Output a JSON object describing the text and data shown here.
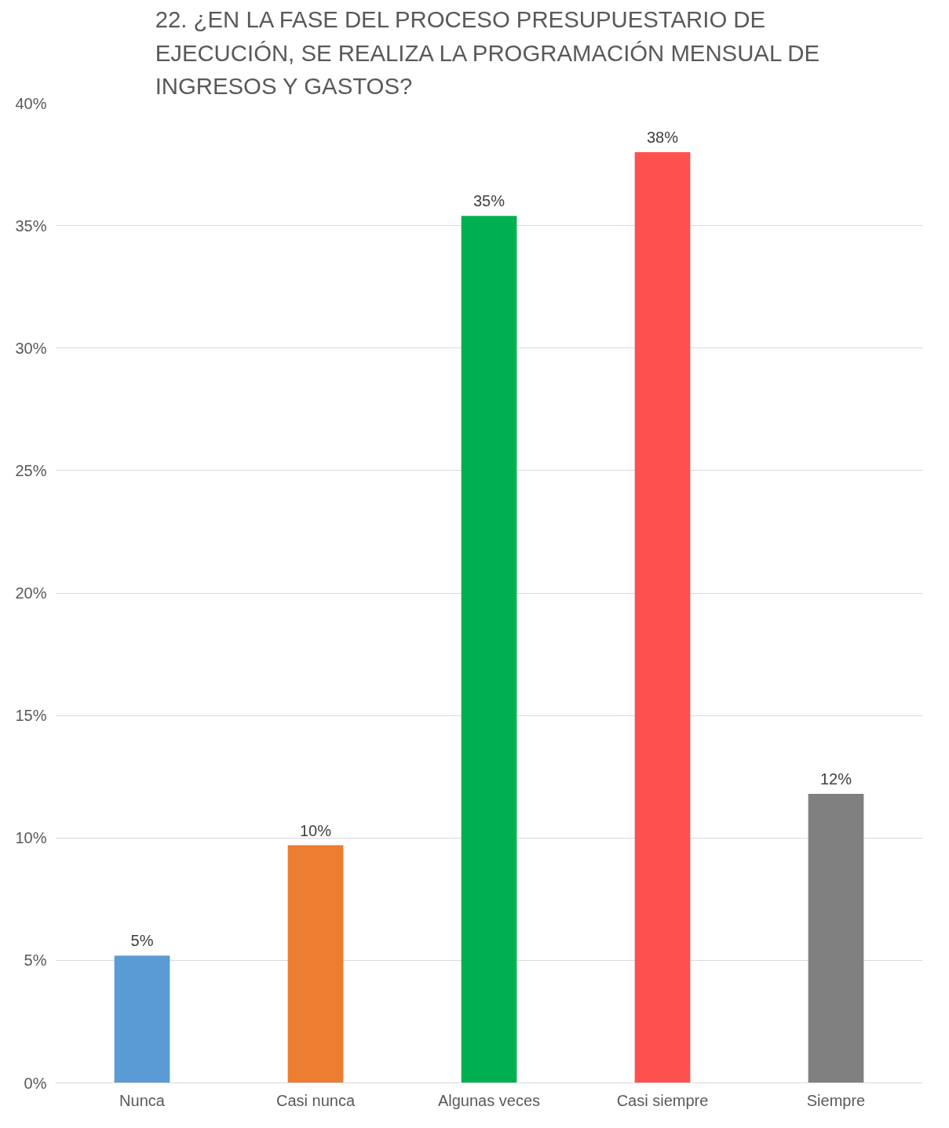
{
  "chart_data": {
    "type": "bar",
    "title": "22. ¿EN LA FASE DEL PROCESO PRESUPUESTARIO DE EJECUCIÓN, SE REALIZA LA PROGRAMACIÓN MENSUAL DE INGRESOS Y GASTOS?",
    "categories": [
      "Nunca",
      "Casi nunca",
      "Algunas veces",
      "Casi siempre",
      "Siempre"
    ],
    "values": [
      5.2,
      9.7,
      35.4,
      38.0,
      11.8
    ],
    "colors": [
      "#5b9bd5",
      "#ed7d31",
      "#00b050",
      "#ff5050",
      "#808080"
    ],
    "value_labels": [
      "5%",
      "10%",
      "35%",
      "38%",
      "12%"
    ],
    "ylim": [
      0,
      40
    ],
    "yticks": [
      {
        "value": 0,
        "label": "0%"
      },
      {
        "value": 5,
        "label": "5%"
      },
      {
        "value": 10,
        "label": "10%"
      },
      {
        "value": 15,
        "label": "15%"
      },
      {
        "value": 20,
        "label": "20%"
      },
      {
        "value": 25,
        "label": "25%"
      },
      {
        "value": 30,
        "label": "30%"
      },
      {
        "value": 35,
        "label": "35%"
      },
      {
        "value": 40,
        "label": "40%"
      }
    ],
    "grid": "y"
  }
}
